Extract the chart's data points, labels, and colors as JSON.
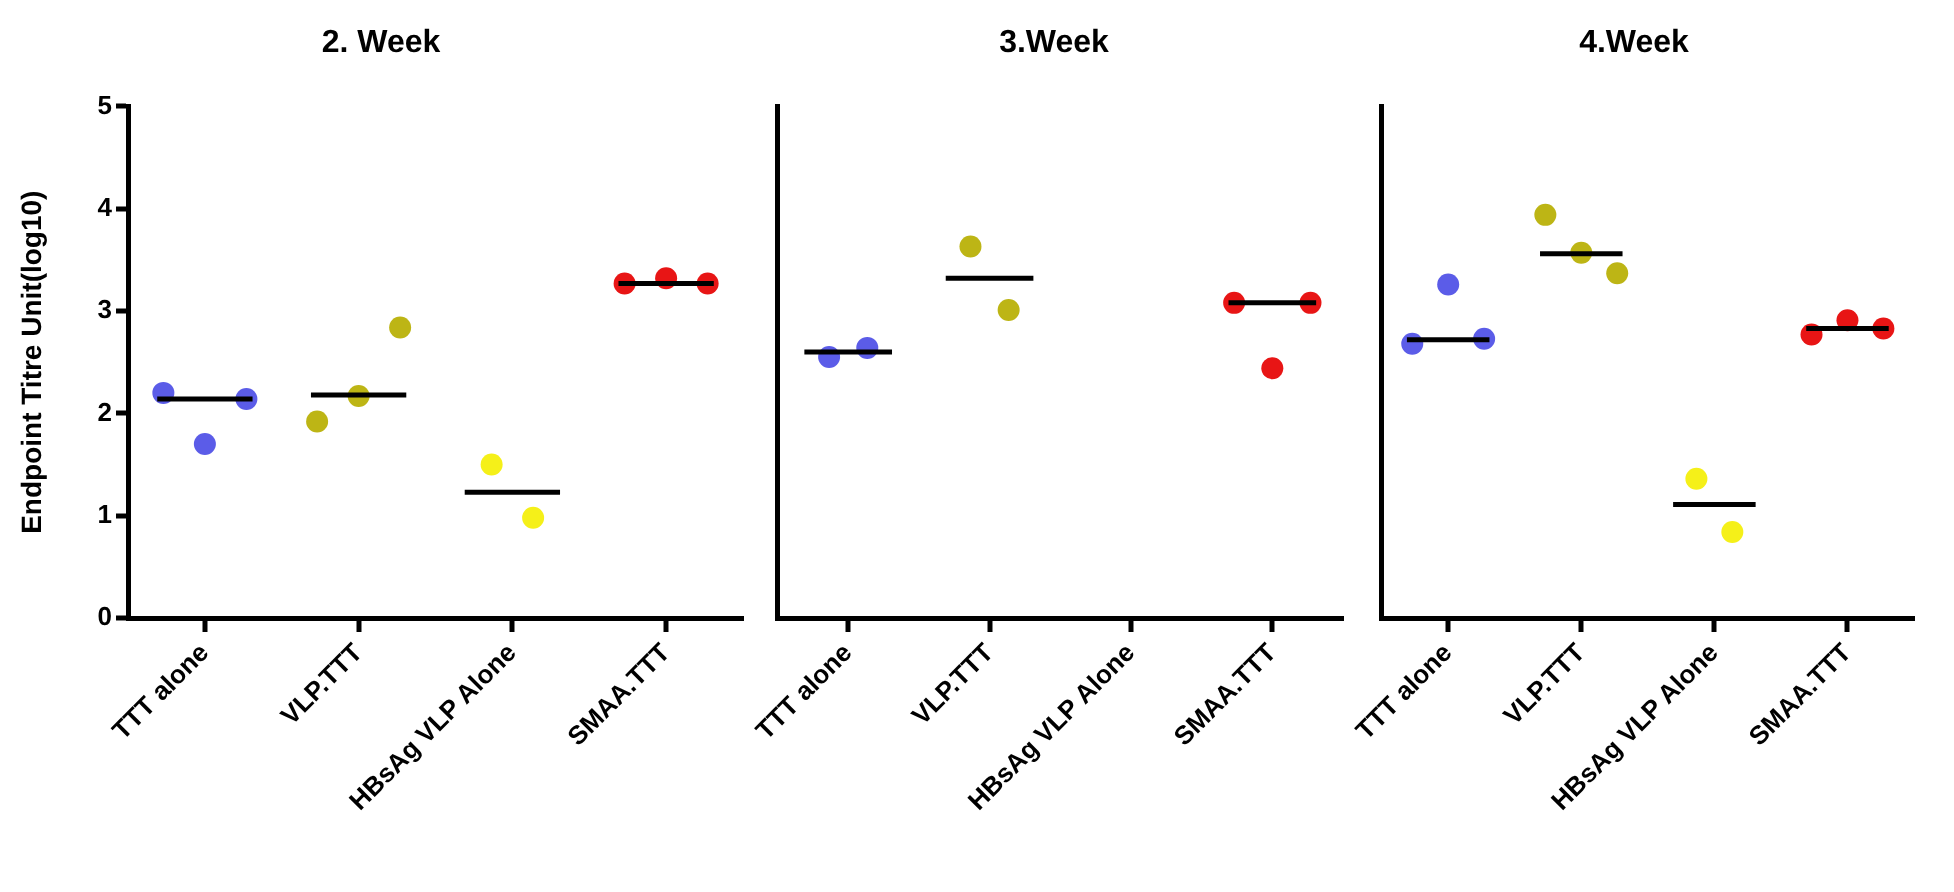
{
  "chart_data": [
    {
      "type": "scatter",
      "title": "2. Week",
      "ylabel": "Endpoint Titre Unit(log10)",
      "categories": [
        "TTT alone",
        "VLP.TTT",
        "HBsAg VLP Alone",
        "SMAA.TTT"
      ],
      "ylim": [
        0,
        5
      ],
      "yticks": [
        0,
        1,
        2,
        3,
        4,
        5
      ],
      "grid": false,
      "legend": false,
      "marker": "circle",
      "series": [
        {
          "color": "#5b5ce8",
          "x": [
            "TTT alone",
            "TTT alone",
            "TTT alone"
          ],
          "values": [
            2.2,
            1.7,
            2.14
          ]
        },
        {
          "color": "#bdb515",
          "x": [
            "VLP.TTT",
            "VLP.TTT",
            "VLP.TTT"
          ],
          "values": [
            1.92,
            2.17,
            2.84
          ]
        },
        {
          "color": "#f5f019",
          "x": [
            "HBsAg VLP Alone",
            "HBsAg VLP Alone"
          ],
          "values": [
            1.5,
            0.98
          ]
        },
        {
          "color": "#e81515",
          "x": [
            "SMAA.TTT",
            "SMAA.TTT",
            "SMAA.TTT"
          ],
          "values": [
            3.27,
            3.32,
            3.27
          ]
        },
        {
          "type": "box",
          "color": "#000000",
          "boxes": [
            {
              "low": 2.14,
              "q1": 2.14,
              "median": 2.14,
              "q3": 2.14,
              "high": 2.14
            },
            {
              "low": 2.18,
              "q1": 2.18,
              "median": 2.18,
              "q3": 2.18,
              "high": 2.18
            },
            {
              "low": 1.23,
              "q1": 1.23,
              "median": 1.23,
              "q3": 1.23,
              "high": 1.23
            },
            {
              "low": 3.27,
              "q1": 3.27,
              "median": 3.27,
              "q3": 3.27,
              "high": 3.27
            }
          ]
        }
      ]
    },
    {
      "type": "scatter",
      "title": "3.Week",
      "categories": [
        "TTT alone",
        "VLP.TTT",
        "HBsAg VLP Alone",
        "SMAA.TTT"
      ],
      "ylim": [
        0,
        5
      ],
      "yticks": [
        0,
        1,
        2,
        3,
        4,
        5
      ],
      "tick_labels": "x",
      "grid": false,
      "legend": false,
      "marker": "circle",
      "series": [
        {
          "color": "#5b5ce8",
          "x": [
            "TTT alone",
            "TTT alone"
          ],
          "values": [
            2.55,
            2.64
          ]
        },
        {
          "color": "#bdb515",
          "x": [
            "VLP.TTT",
            "VLP.TTT"
          ],
          "values": [
            3.63,
            3.01
          ]
        },
        {
          "color": "#e81515",
          "x": [
            "SMAA.TTT",
            "SMAA.TTT",
            "SMAA.TTT"
          ],
          "values": [
            3.08,
            2.44,
            3.08
          ]
        },
        {
          "type": "box",
          "color": "#000000",
          "boxes": [
            {
              "low": 2.6,
              "q1": 2.6,
              "median": 2.6,
              "q3": 2.6,
              "high": 2.6
            },
            {
              "low": 3.32,
              "q1": 3.32,
              "median": 3.32,
              "q3": 3.32,
              "high": 3.32
            },
            null,
            {
              "low": 3.08,
              "q1": 3.08,
              "median": 3.08,
              "q3": 3.08,
              "high": 3.08
            }
          ]
        }
      ]
    },
    {
      "type": "scatter",
      "title": "4.Week",
      "categories": [
        "TTT alone",
        "VLP.TTT",
        "HBsAg VLP Alone",
        "SMAA.TTT"
      ],
      "ylim": [
        0,
        5
      ],
      "yticks": [
        0,
        1,
        2,
        3,
        4,
        5
      ],
      "tick_labels": "x",
      "grid": false,
      "legend": false,
      "marker": "circle",
      "series": [
        {
          "color": "#5b5ce8",
          "x": [
            "TTT alone",
            "TTT alone",
            "TTT alone"
          ],
          "values": [
            2.68,
            3.26,
            2.73
          ]
        },
        {
          "color": "#bdb515",
          "x": [
            "VLP.TTT",
            "VLP.TTT",
            "VLP.TTT"
          ],
          "values": [
            3.94,
            3.57,
            3.37
          ]
        },
        {
          "color": "#f5f019",
          "x": [
            "HBsAg VLP Alone",
            "HBsAg VLP Alone"
          ],
          "values": [
            1.36,
            0.84
          ]
        },
        {
          "color": "#e81515",
          "x": [
            "SMAA.TTT",
            "SMAA.TTT",
            "SMAA.TTT"
          ],
          "values": [
            2.77,
            2.91,
            2.83
          ]
        },
        {
          "type": "box",
          "color": "#000000",
          "boxes": [
            {
              "low": 2.72,
              "q1": 2.72,
              "median": 2.72,
              "q3": 2.72,
              "high": 2.72
            },
            {
              "low": 3.56,
              "q1": 3.56,
              "median": 3.56,
              "q3": 3.56,
              "high": 3.56
            },
            {
              "low": 1.11,
              "q1": 1.11,
              "median": 1.11,
              "q3": 1.11,
              "high": 1.11
            },
            {
              "low": 2.83,
              "q1": 2.83,
              "median": 2.83,
              "q3": 2.83,
              "high": 2.83
            }
          ]
        }
      ]
    }
  ]
}
